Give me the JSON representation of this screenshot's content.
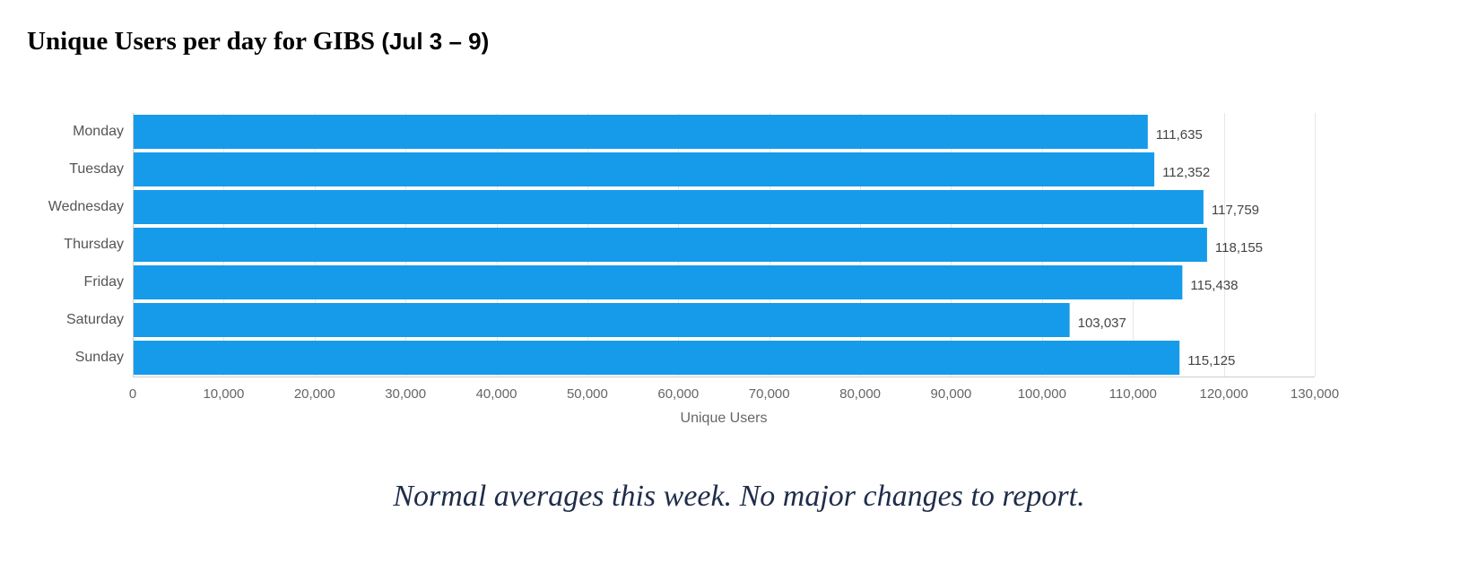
{
  "page": {
    "title_main": "Unique Users per day for GIBS",
    "title_range": "(Jul 3 – 9)",
    "footnote": "Normal averages this week.  No major changes to report."
  },
  "chart_data": {
    "type": "bar",
    "orientation": "horizontal",
    "title": "Unique Users per day for GIBS (Jul 3 – 9)",
    "categories": [
      "Monday",
      "Tuesday",
      "Wednesday",
      "Thursday",
      "Friday",
      "Saturday",
      "Sunday"
    ],
    "values": [
      111635,
      112352,
      117759,
      118155,
      115438,
      103037,
      115125
    ],
    "value_labels": [
      "111,635",
      "112,352",
      "117,759",
      "118,155",
      "115,438",
      "103,037",
      "115,125"
    ],
    "xlabel": "Unique Users",
    "ylabel": "",
    "xlim": [
      0,
      130000
    ],
    "xticks": [
      0,
      10000,
      20000,
      30000,
      40000,
      50000,
      60000,
      70000,
      80000,
      90000,
      100000,
      110000,
      120000,
      130000
    ],
    "xtick_labels": [
      "0",
      "10,000",
      "20,000",
      "30,000",
      "40,000",
      "50,000",
      "60,000",
      "70,000",
      "80,000",
      "90,000",
      "100,000",
      "110,000",
      "120,000",
      "130,000"
    ],
    "grid": "vertical",
    "legend": "none",
    "colors": {
      "bar": "#169bea",
      "grid": "#e6e6e6",
      "axis": "#cccccc",
      "tick_label": "#666666",
      "category_label": "#555555",
      "value_label": "#444444"
    }
  }
}
